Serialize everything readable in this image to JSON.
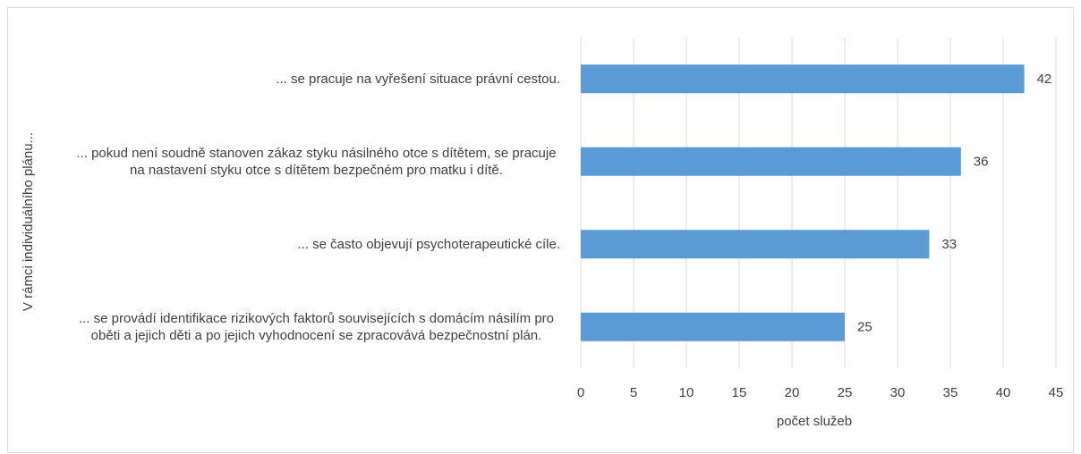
{
  "chart_data": {
    "type": "bar",
    "orientation": "horizontal",
    "x_label": "počet služeb",
    "y_label": "V rámci individuálního plánu...",
    "categories": [
      "... se pracuje na vyřešení situace právní cestou.",
      "... pokud není soudně stanoven zákaz styku násilného otce s dítětem, se pracuje na nastavení styku otce s dítětem bezpečném pro matku i dítě.",
      "... se často objevují psychoterapeutické cíle.",
      "... se provádí identifikace rizikových faktorů souvisejících s domácím násilím pro oběti a jejich děti a po jejich vyhodnocení se zpracovává bezpečnostní plán."
    ],
    "values": [
      42,
      36,
      33,
      25
    ],
    "color": "#5b9bd5",
    "xlim": [
      0,
      45
    ],
    "xticks": [
      0,
      5,
      10,
      15,
      20,
      25,
      30,
      35,
      40,
      45
    ],
    "grid": true
  }
}
